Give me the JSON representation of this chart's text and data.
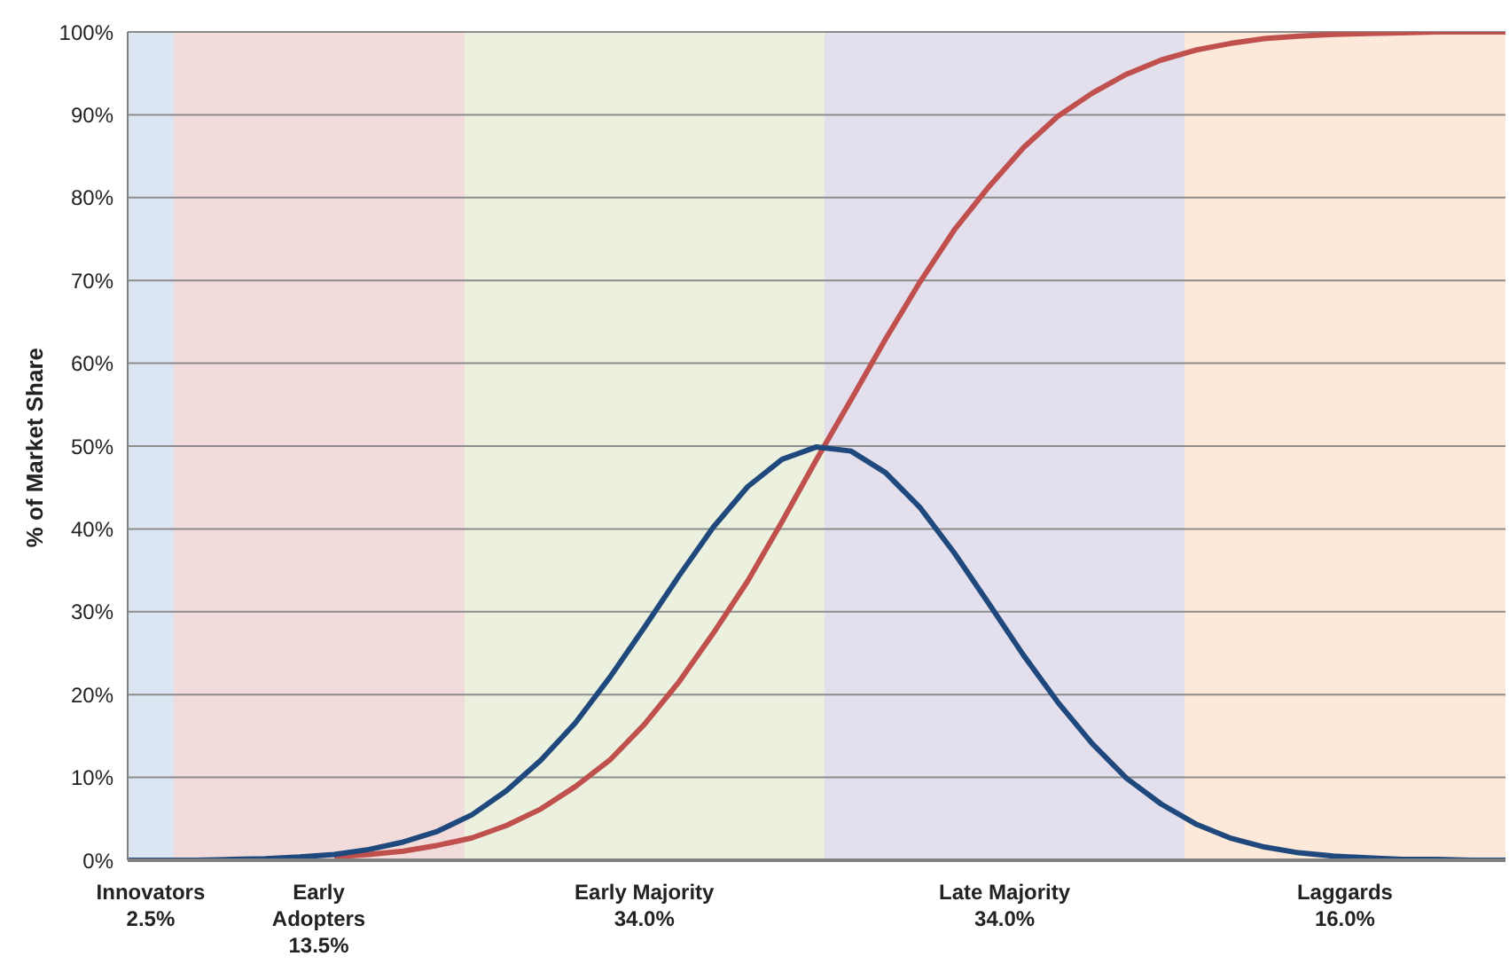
{
  "chart_data": {
    "type": "line",
    "ylabel": "% of Market Share",
    "categories": [
      null,
      null,
      null,
      null,
      null,
      null,
      null,
      null,
      null,
      null,
      null,
      null,
      null,
      null,
      null,
      null,
      null,
      null,
      null,
      null,
      null,
      null,
      null,
      null,
      null,
      null,
      null,
      null,
      null,
      null,
      null,
      null,
      null,
      null,
      null,
      null,
      null,
      null,
      null,
      null,
      null
    ],
    "series": [
      {
        "color": "#c0504d",
        "values": [
          null,
          null,
          null,
          null,
          null,
          null,
          0.4,
          0.7,
          1.1,
          1.8,
          2.7,
          4.2,
          6.2,
          8.9,
          12.1,
          16.4,
          21.5,
          27.4,
          33.7,
          40.9,
          48.4,
          55.6,
          62.9,
          69.8,
          76.1,
          81.3,
          86,
          89.8,
          92.6,
          94.9,
          96.6,
          97.8,
          98.6,
          99.2,
          99.5,
          99.7,
          99.8,
          99.9,
          100,
          100,
          100
        ]
      },
      {
        "color": "#1f497d",
        "values": [
          0,
          0,
          0,
          0.1,
          0.2,
          0.4,
          0.7,
          1.3,
          2.2,
          3.5,
          5.5,
          8.4,
          12.1,
          16.6,
          22.1,
          28.1,
          34.3,
          40.2,
          45.1,
          48.4,
          49.9,
          49.4,
          46.8,
          42.6,
          37.1,
          31,
          24.8,
          19.1,
          14.1,
          9.9,
          6.8,
          4.4,
          2.7,
          1.6,
          0.9,
          0.5,
          0.3,
          0.1,
          0.1,
          0,
          0
        ]
      }
    ],
    "ylim": [
      0,
      100
    ],
    "yticks": [
      {
        "value": 0,
        "label": "0%"
      },
      {
        "value": 10,
        "label": "10%"
      },
      {
        "value": 20,
        "label": "20%"
      },
      {
        "value": 30,
        "label": "30%"
      },
      {
        "value": 40,
        "label": "40%"
      },
      {
        "value": 50,
        "label": "50%"
      },
      {
        "value": 60,
        "label": "60%"
      },
      {
        "value": 70,
        "label": "70%"
      },
      {
        "value": 80,
        "label": "80%"
      },
      {
        "value": 90,
        "label": "90%"
      },
      {
        "value": 100,
        "label": "100%"
      }
    ],
    "annotations": [
      "Innovators\n2.5%",
      "Early\nAdopters\n13.5%",
      "Early Majority\n34.0%",
      "Late Majority\n34.0%",
      "Laggards\n16.0%"
    ],
    "grid": "y",
    "tick_labels": "y",
    "marker": "none",
    "line_style": "solid",
    "legend": false
  }
}
